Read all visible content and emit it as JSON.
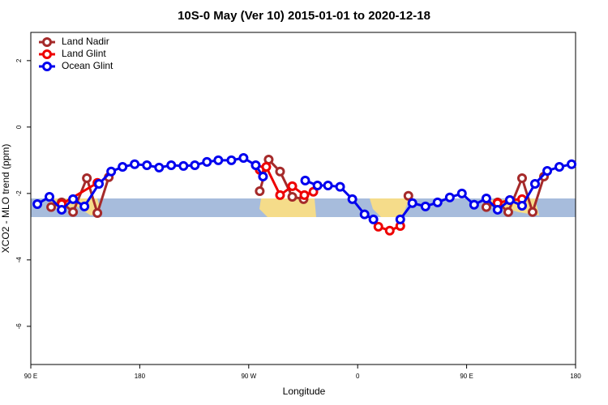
{
  "chart_data": {
    "type": "line",
    "title": "10S-0 May (Ver 10)   2015-01-01 to 2020-12-18",
    "x_label": "Longitude",
    "y_label": "XCO2 - MLO trend (ppm)",
    "xlim": [
      90,
      540
    ],
    "xticks": [
      {
        "value": 90,
        "label": "90 E"
      },
      180,
      {
        "value": 270,
        "label": "90 W"
      },
      {
        "value": 360,
        "label": "0"
      },
      {
        "value": 450,
        "label": "90 E"
      },
      {
        "value": 540,
        "label": "180"
      }
    ],
    "ylim": [
      -7.15,
      2.85
    ],
    "yticks": [
      2,
      0,
      -2,
      -4,
      -6
    ],
    "legend": "topleft",
    "series": [
      {
        "name": "Land Nadir",
        "color": "#a52a2a",
        "x": [
          106.8,
          115.5,
          124.9,
          136.3,
          145.0,
          154.4,
          null,
          279.1,
          286.5,
          295.9,
          306.0,
          315.3,
          null,
          401.9,
          null,
          466.3,
          475.6,
          484.4,
          495.8,
          504.5,
          513.9
        ],
        "values": [
          -2.41,
          -2.27,
          -2.56,
          -1.54,
          -2.59,
          -1.51,
          null,
          -1.93,
          -0.98,
          -1.34,
          -2.1,
          -2.17,
          null,
          -2.07,
          null,
          -2.41,
          -2.27,
          -2.56,
          -1.54,
          -2.56,
          -1.49
        ]
      },
      {
        "name": "Land Glint",
        "color": "#ee0000",
        "x": [
          115.5,
          145.0,
          null,
          279.1,
          284.5,
          295.9,
          306.0,
          316.0,
          323.4,
          null,
          377.1,
          386.5,
          395.2,
          null,
          475.6,
          485.7,
          495.8
        ],
        "values": [
          -2.32,
          -1.68,
          null,
          -1.29,
          -1.2,
          -2.05,
          -1.78,
          -2.05,
          -1.95,
          null,
          -3.0,
          -3.12,
          -2.98,
          null,
          -2.29,
          -2.2,
          -2.17
        ]
      },
      {
        "name": "Ocean Glint",
        "color": "#0000ee",
        "x": [
          95.4,
          105.4,
          115.5,
          124.9,
          134.3,
          146.3,
          156.4,
          165.8,
          175.8,
          185.9,
          196.0,
          206.0,
          216.1,
          225.5,
          235.5,
          244.9,
          255.7,
          265.7,
          275.8,
          281.8,
          null,
          316.7,
          326.8,
          335.5,
          345.5,
          355.6,
          365.7,
          373.0,
          null,
          395.2,
          405.2,
          416.0,
          426.0,
          436.1,
          446.1,
          456.2,
          466.3,
          475.6,
          485.7,
          495.8,
          506.5,
          516.6,
          526.6,
          536.7
        ],
        "values": [
          -2.32,
          -2.1,
          -2.49,
          -2.17,
          -2.39,
          -1.71,
          -1.34,
          -1.2,
          -1.12,
          -1.15,
          -1.22,
          -1.15,
          -1.17,
          -1.15,
          -1.05,
          -1.0,
          -1.0,
          -0.93,
          -1.15,
          -1.49,
          null,
          -1.61,
          -1.76,
          -1.76,
          -1.8,
          -2.17,
          -2.63,
          -2.78,
          null,
          -2.78,
          -2.29,
          -2.39,
          -2.27,
          -2.12,
          -2.0,
          -2.34,
          -2.15,
          -2.49,
          -2.2,
          -2.37,
          -1.71,
          -1.32,
          -1.2,
          -1.12
        ]
      }
    ]
  }
}
